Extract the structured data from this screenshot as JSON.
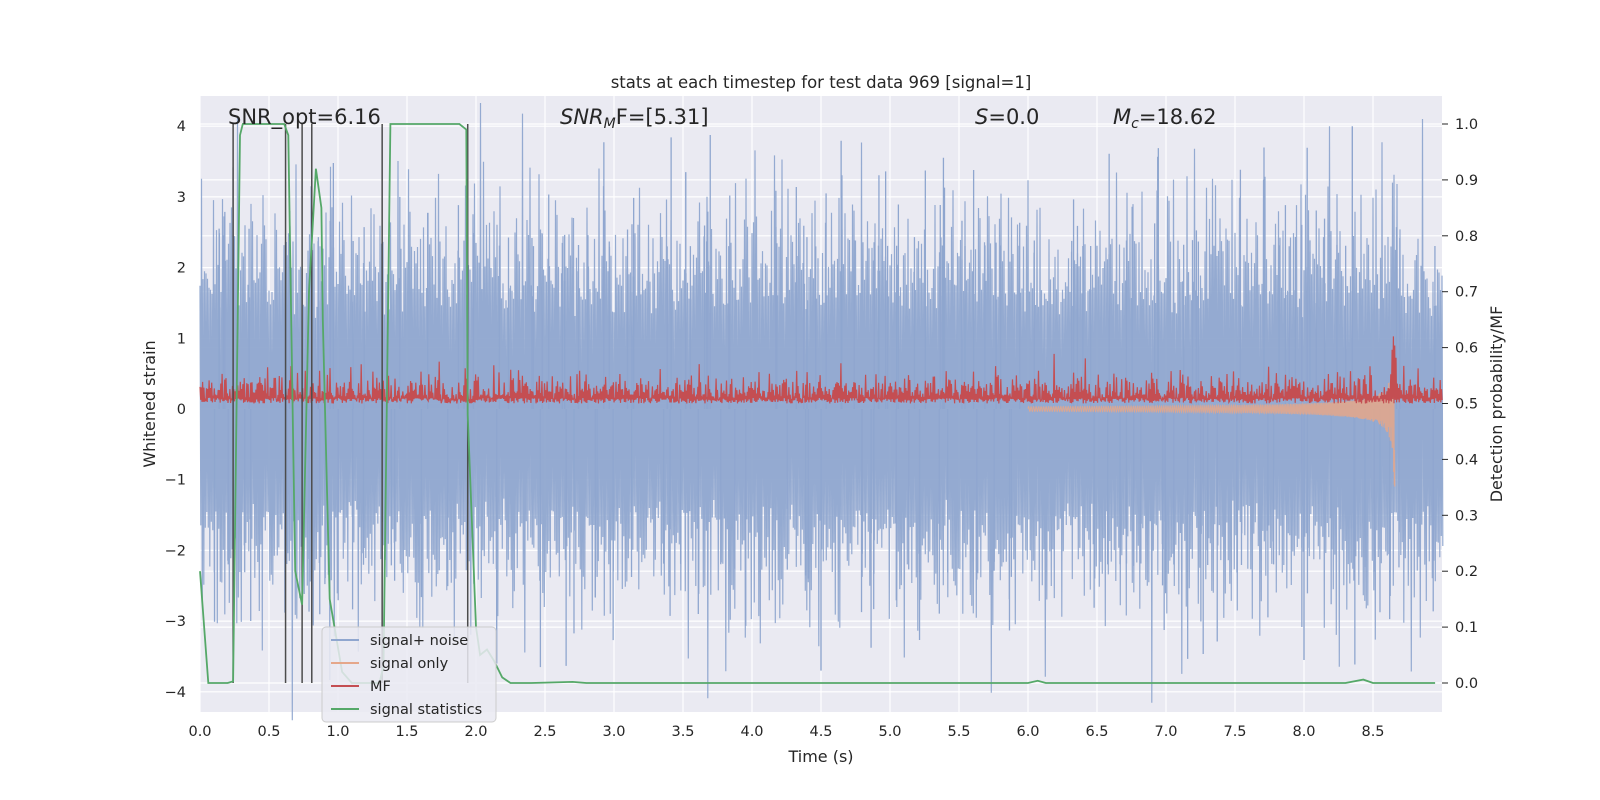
{
  "chart_data": {
    "type": "line",
    "title": "stats at each timestep for test data 969 [signal=1]",
    "xlabel": "Time (s)",
    "ylabel": "Whitened strain",
    "ylabel_right": "Detection probability/MF",
    "xlim": [
      0.0,
      9.0
    ],
    "ylim": [
      -4.25,
      4.4
    ],
    "ylim_right": [
      -0.05,
      1.04
    ],
    "x_ticks": [
      0.0,
      0.5,
      1.0,
      1.5,
      2.0,
      2.5,
      3.0,
      3.5,
      4.0,
      4.5,
      5.0,
      5.5,
      6.0,
      6.5,
      7.0,
      7.5,
      8.0,
      8.5
    ],
    "x_tick_labels": [
      "0.0",
      "0.5",
      "1.0",
      "1.5",
      "2.0",
      "2.5",
      "3.0",
      "3.5",
      "4.0",
      "4.5",
      "5.0",
      "5.5",
      "6.0",
      "6.5",
      "7.0",
      "7.5",
      "8.0",
      "8.5"
    ],
    "y_ticks": [
      4,
      3,
      2,
      1,
      0,
      -1,
      -2,
      -3,
      -4
    ],
    "y_tick_labels": [
      "4",
      "3",
      "2",
      "1",
      "0",
      "−1",
      "−2",
      "−3",
      "−4"
    ],
    "y_ticks_right": [
      1.0,
      0.9,
      0.8,
      0.7,
      0.6,
      0.5,
      0.4,
      0.3,
      0.2,
      0.1,
      0.0
    ],
    "y_tick_labels_right": [
      "1.0",
      "0.9",
      "0.8",
      "0.7",
      "0.6",
      "0.5",
      "0.4",
      "0.3",
      "0.2",
      "0.1",
      "0.0"
    ],
    "grid": true,
    "annotations": {
      "snr_opt": "SNR_opt=6.16",
      "snr_mf_var": "SNR",
      "snr_mf_sub": "M",
      "snr_mf_rest": "F=[5.31]",
      "s_var": "S",
      "s_rest": "=0.0",
      "mc_var": "M",
      "mc_sub": "c",
      "mc_rest": "=18.62"
    },
    "legend": {
      "location": "lower-left",
      "entries": [
        {
          "label": "signal+ noise",
          "color": "#8fa6cf"
        },
        {
          "label": "signal only",
          "color": "#e5a78a"
        },
        {
          "label": "MF",
          "color": "#c44e52"
        },
        {
          "label": "signal statistics",
          "color": "#55a868"
        }
      ]
    },
    "series": [
      {
        "name": "signal+ noise",
        "axis": "left",
        "color": "#8fa6cf",
        "note": "dense whitened noise trace, approx. band -2.4..2.4 with spikes to +4.0 / -3.7"
      },
      {
        "name": "signal only",
        "axis": "left",
        "color": "#e5a78a",
        "note": "inspiral chirp, amplitude growing toward merger near t=8.65 s (approx. ±1.3)"
      },
      {
        "name": "MF",
        "axis": "right",
        "color": "#c44e52",
        "note": "matched filter output on right axis, approx. 0.5..0.57 with peak 0.68 near t=8.65 s"
      },
      {
        "name": "signal statistics",
        "axis": "right",
        "color": "#55a868",
        "x": [
          0.0,
          0.06,
          0.2,
          0.24,
          0.29,
          0.31,
          0.35,
          0.61,
          0.64,
          0.69,
          0.74,
          0.79,
          0.84,
          0.88,
          0.89,
          0.94,
          1.03,
          1.1,
          1.2,
          1.3,
          1.33,
          1.38,
          1.42,
          1.5,
          1.6,
          1.7,
          1.8,
          1.88,
          1.93,
          1.94,
          2.0,
          2.03,
          2.08,
          2.13,
          2.19,
          2.25,
          2.4,
          2.7,
          2.8,
          3.0,
          6.0,
          6.07,
          6.13,
          8.3,
          8.43,
          8.5,
          8.95
        ],
        "y": [
          0.2,
          0.0,
          0.0,
          0.003,
          0.98,
          1.0,
          1.0,
          1.0,
          0.98,
          0.2,
          0.14,
          0.7,
          0.92,
          0.85,
          0.65,
          0.15,
          0.02,
          0.0,
          0.0,
          0.0,
          0.03,
          1.0,
          1.0,
          1.0,
          1.0,
          1.0,
          1.0,
          1.0,
          0.99,
          0.48,
          0.1,
          0.05,
          0.06,
          0.04,
          0.01,
          0.0,
          0.0,
          0.002,
          0.0,
          0.0,
          0.0,
          0.004,
          0.0,
          0.0,
          0.006,
          0.0,
          0.0
        ]
      }
    ],
    "vertical_lines": {
      "color": "#4c4c4c",
      "x": [
        0.24,
        0.62,
        0.74,
        0.81,
        1.32,
        1.94
      ],
      "y_range_right": [
        0.0,
        1.0
      ]
    }
  }
}
